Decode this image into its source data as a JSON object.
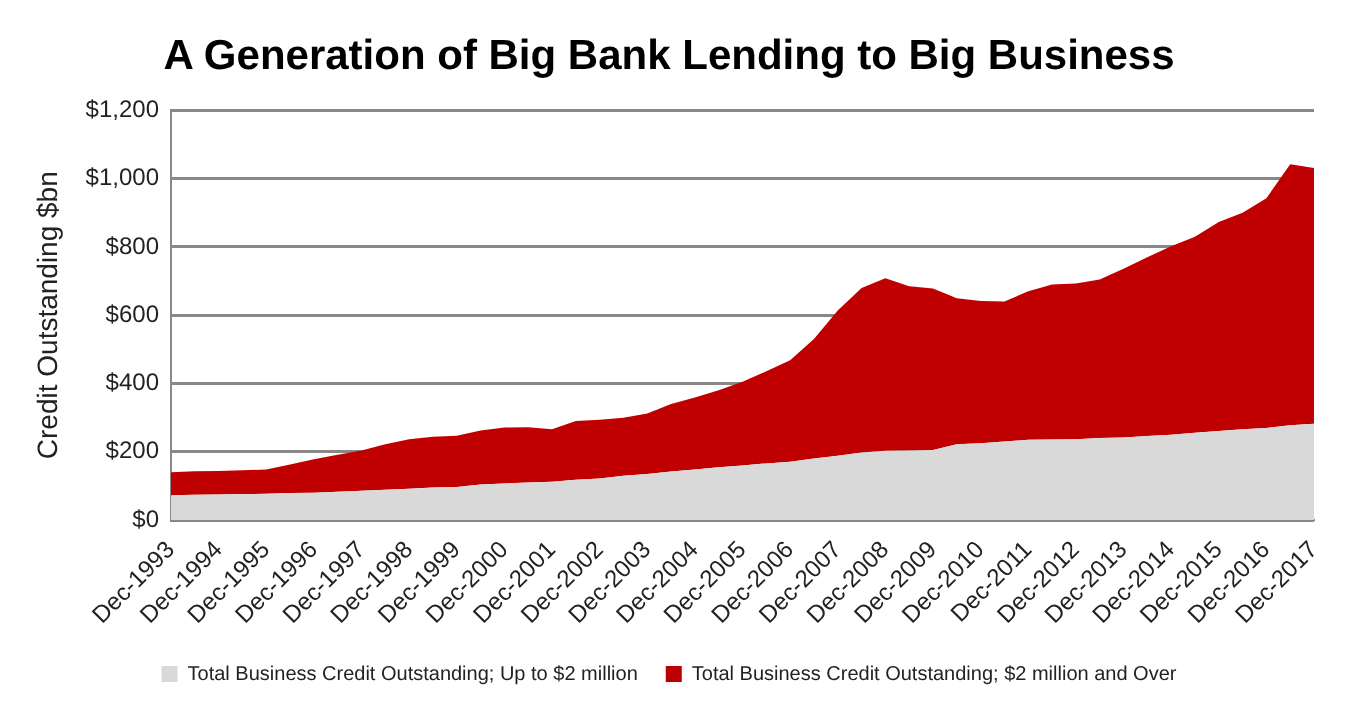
{
  "chart_data": {
    "type": "area",
    "title": "A Generation of Big Bank Lending to Big Business",
    "ylabel": "Credit Outstanding $bn",
    "stacked": true,
    "grid": "y",
    "legend": "bottom",
    "categories": [
      "Dec-1993",
      null,
      "Dec-1994",
      null,
      "Dec-1995",
      null,
      "Dec-1996",
      null,
      "Dec-1997",
      null,
      "Dec-1998",
      null,
      "Dec-1999",
      null,
      "Dec-2000",
      null,
      "Dec-2001",
      null,
      "Dec-2002",
      null,
      "Dec-2003",
      null,
      "Dec-2004",
      null,
      "Dec-2005",
      null,
      "Dec-2006",
      null,
      "Dec-2007",
      null,
      "Dec-2008",
      null,
      "Dec-2009",
      null,
      "Dec-2010",
      null,
      "Dec-2011",
      null,
      "Dec-2012",
      null,
      "Dec-2013",
      null,
      "Dec-2014",
      null,
      "Dec-2015",
      null,
      "Dec-2016",
      null,
      "Dec-2017"
    ],
    "ylim": [
      0,
      1200
    ],
    "yticks": [
      {
        "value": 0,
        "label": "$0"
      },
      {
        "value": 200,
        "label": "$200"
      },
      {
        "value": 400,
        "label": "$400"
      },
      {
        "value": 600,
        "label": "$600"
      },
      {
        "value": 800,
        "label": "$800"
      },
      {
        "value": 1000,
        "label": "$1,000"
      },
      {
        "value": 1200,
        "label": "$1,200"
      }
    ],
    "series": [
      {
        "name": "Total Business Credit Outstanding; Up to $2 million",
        "color": "#d9d9d9",
        "values": [
          73,
          74,
          75,
          76,
          77,
          79,
          80,
          83,
          86,
          89,
          92,
          95,
          97,
          104,
          107,
          110,
          112,
          118,
          122,
          130,
          135,
          142,
          148,
          155,
          160,
          166,
          171,
          180,
          188,
          198,
          203,
          204,
          205,
          222,
          225,
          230,
          235,
          236,
          237,
          240,
          242,
          246,
          250,
          256,
          261,
          266,
          270,
          278,
          282
        ]
      },
      {
        "name": "Total Business Credit Outstanding; $2 million and Over",
        "color": "#c00000",
        "values": [
          67,
          69,
          69,
          70,
          71,
          84,
          98,
          108,
          118,
          133,
          145,
          149,
          150,
          158,
          164,
          162,
          154,
          172,
          172,
          170,
          177,
          198,
          211,
          225,
          245,
          270,
          297,
          350,
          426,
          482,
          505,
          481,
          473,
          428,
          417,
          410,
          435,
          454,
          456,
          465,
          494,
          524,
          552,
          574,
          612,
          634,
          673,
          764,
          749
        ]
      }
    ]
  }
}
